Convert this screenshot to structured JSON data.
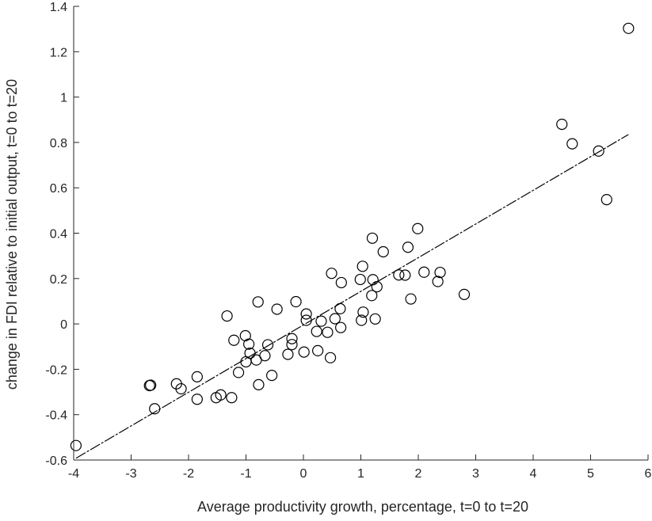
{
  "chart_data": {
    "type": "scatter",
    "title": "",
    "xlabel": "Average productivity growth, percentage, t=0 to t=20",
    "ylabel": "change in FDI relative to initial output, t=0 to t=20",
    "xlim": [
      -4,
      6
    ],
    "ylim": [
      -0.6,
      1.4
    ],
    "xticks": [
      -4,
      -3,
      -2,
      -1,
      0,
      1,
      2,
      3,
      4,
      5,
      6
    ],
    "yticks": [
      -0.6,
      -0.4,
      -0.2,
      0,
      0.2,
      0.4,
      0.6,
      0.8,
      1,
      1.2,
      1.4
    ],
    "grid": false,
    "marker": "open-circle",
    "colors": {
      "marker": "#000000",
      "axis": "#262626",
      "fit_line": "#000000"
    },
    "points": [
      [
        -3.96,
        -0.536
      ],
      [
        -2.68,
        -0.272
      ],
      [
        -2.66,
        -0.27
      ],
      [
        -2.59,
        -0.374
      ],
      [
        -2.21,
        -0.264
      ],
      [
        -2.13,
        -0.286
      ],
      [
        -1.85,
        -0.233
      ],
      [
        -1.85,
        -0.332
      ],
      [
        -1.52,
        -0.325
      ],
      [
        -1.44,
        -0.313
      ],
      [
        -1.33,
        0.035
      ],
      [
        -1.25,
        -0.325
      ],
      [
        -1.21,
        -0.072
      ],
      [
        -1.13,
        -0.214
      ],
      [
        -1.01,
        -0.052
      ],
      [
        -1.0,
        -0.167
      ],
      [
        -0.95,
        -0.089
      ],
      [
        -0.93,
        -0.129
      ],
      [
        -0.82,
        -0.159
      ],
      [
        -0.79,
        0.097
      ],
      [
        -0.78,
        -0.268
      ],
      [
        -0.67,
        -0.14
      ],
      [
        -0.62,
        -0.092
      ],
      [
        -0.55,
        -0.227
      ],
      [
        -0.46,
        0.065
      ],
      [
        -0.27,
        -0.134
      ],
      [
        -0.2,
        -0.091
      ],
      [
        -0.2,
        -0.065
      ],
      [
        -0.13,
        0.098
      ],
      [
        0.01,
        -0.124
      ],
      [
        0.05,
        0.044
      ],
      [
        0.05,
        0.016
      ],
      [
        0.23,
        -0.033
      ],
      [
        0.25,
        -0.118
      ],
      [
        0.31,
        0.012
      ],
      [
        0.42,
        -0.037
      ],
      [
        0.47,
        -0.149
      ],
      [
        0.49,
        0.223
      ],
      [
        0.55,
        0.023
      ],
      [
        0.64,
        0.067
      ],
      [
        0.65,
        -0.016
      ],
      [
        0.66,
        0.182
      ],
      [
        0.99,
        0.196
      ],
      [
        1.01,
        0.016
      ],
      [
        1.03,
        0.254
      ],
      [
        1.04,
        0.052
      ],
      [
        1.19,
        0.125
      ],
      [
        1.2,
        0.378
      ],
      [
        1.21,
        0.195
      ],
      [
        1.25,
        0.022
      ],
      [
        1.28,
        0.164
      ],
      [
        1.39,
        0.318
      ],
      [
        1.66,
        0.216
      ],
      [
        1.77,
        0.215
      ],
      [
        1.82,
        0.338
      ],
      [
        1.87,
        0.11
      ],
      [
        1.99,
        0.42
      ],
      [
        2.1,
        0.228
      ],
      [
        2.34,
        0.187
      ],
      [
        2.38,
        0.227
      ],
      [
        2.8,
        0.13
      ],
      [
        4.5,
        0.88
      ],
      [
        4.68,
        0.794
      ],
      [
        5.14,
        0.762
      ],
      [
        5.28,
        0.548
      ],
      [
        5.66,
        1.303
      ]
    ],
    "fit_line": {
      "x": [
        -3.96,
        5.66
      ],
      "y": [
        -0.592,
        0.835
      ],
      "style": "dashed"
    }
  }
}
